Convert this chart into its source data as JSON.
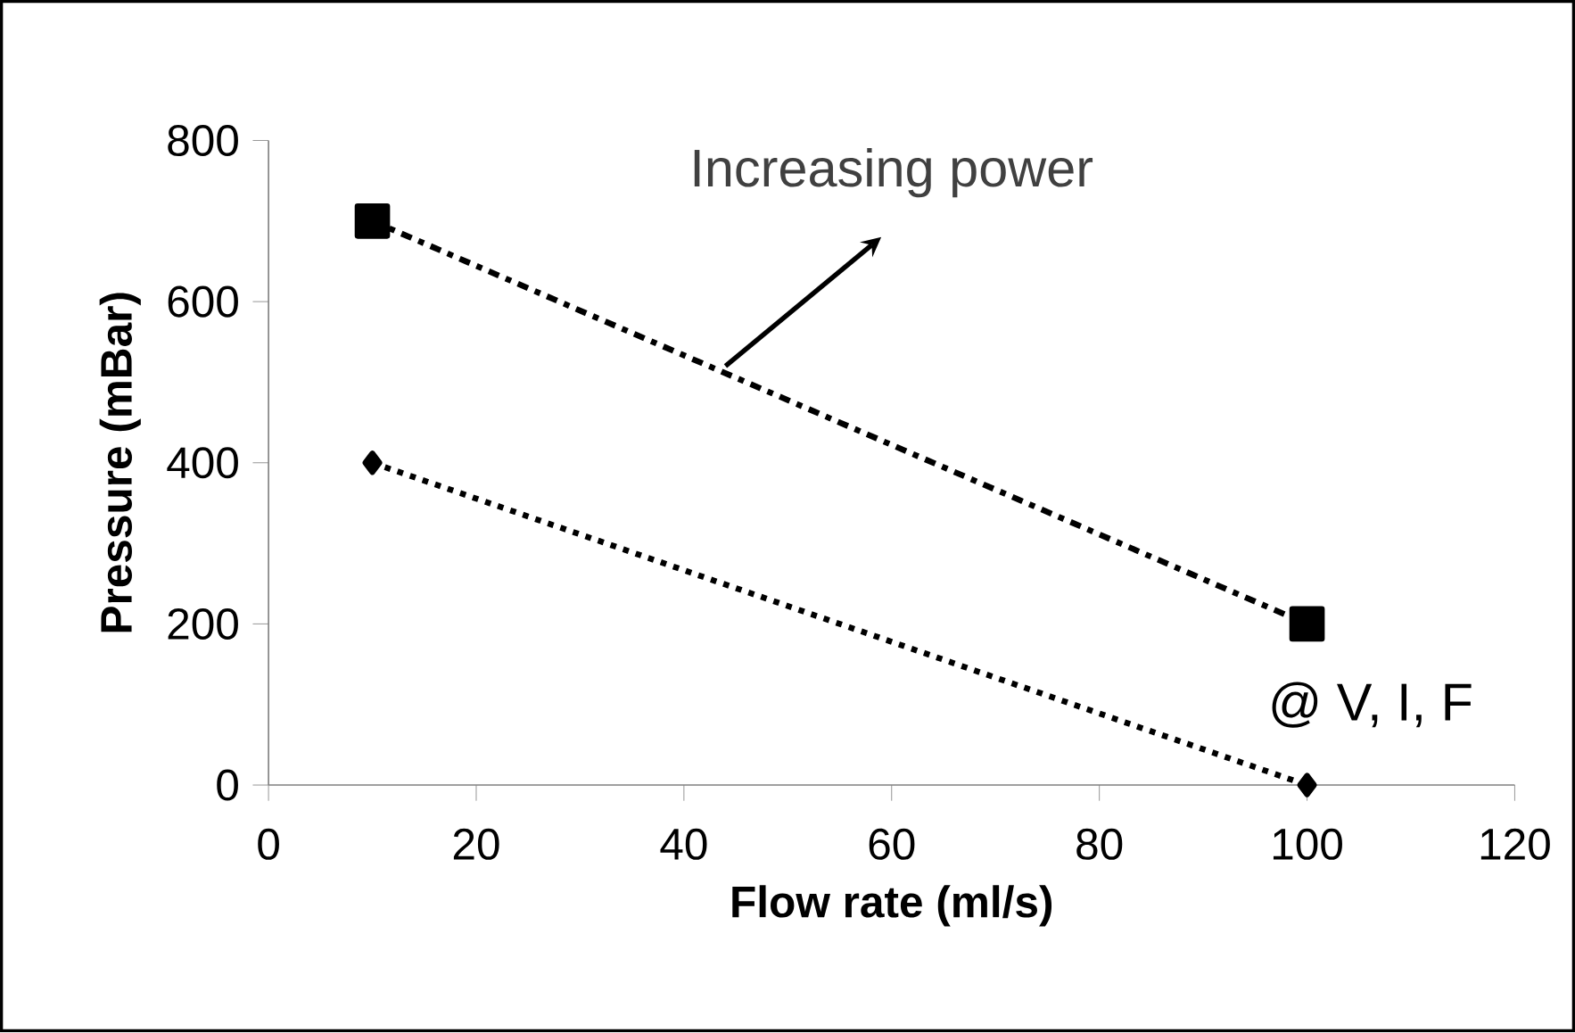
{
  "chart_data": {
    "type": "line",
    "xlabel": "Flow rate (ml/s)",
    "ylabel": "Pressure (mBar)",
    "x": [
      10,
      100
    ],
    "series": [
      {
        "color": "#000000",
        "values": [
          700,
          200
        ],
        "marker": "square",
        "line_style": "dashed"
      },
      {
        "color": "#000000",
        "values": [
          400,
          0
        ],
        "marker": "diamond",
        "line_style": "dotted"
      }
    ],
    "xlim": [
      0,
      120
    ],
    "xticks": [
      0,
      20,
      40,
      60,
      80,
      100,
      120
    ],
    "ylim": [
      0,
      800
    ],
    "yticks": [
      0,
      200,
      400,
      600,
      800
    ],
    "grid": false,
    "annotations": [
      {
        "text": "Increasing power",
        "x": 44,
        "y": 520
      },
      "@ V, I, F"
    ]
  }
}
